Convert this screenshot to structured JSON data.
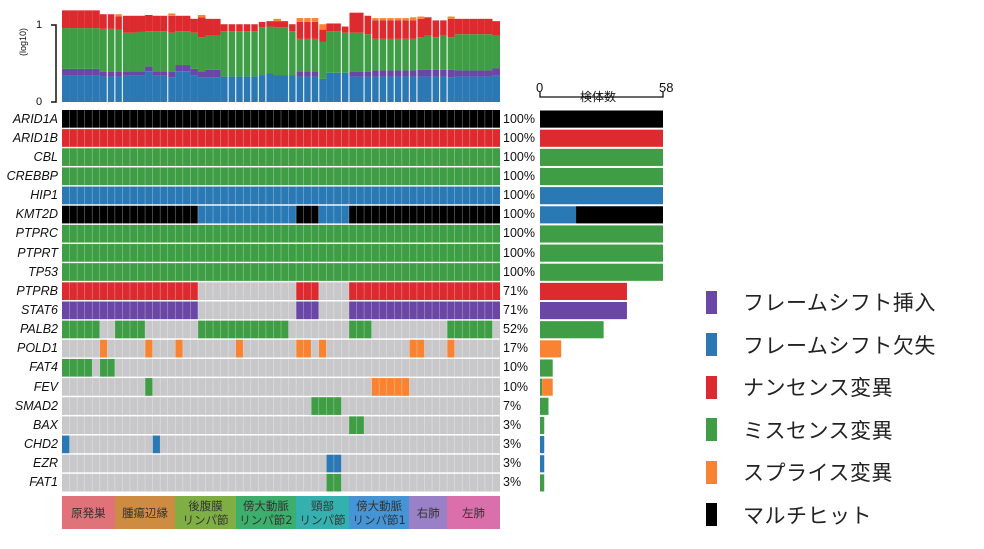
{
  "chart_data": {
    "type": "heatmap",
    "subtype": "oncoprint",
    "n_samples": 58,
    "top_axis": {
      "ylabel": "(log10)",
      "ticks": [
        "0",
        "1"
      ],
      "ylim": [
        0,
        1
      ]
    },
    "count_axis": {
      "title": "検体数",
      "min_label": "0",
      "max_label": "58",
      "max": 58
    },
    "mutation_types": [
      {
        "key": "fs_ins",
        "label": "フレームシフト挿入",
        "color": "#6a46a6"
      },
      {
        "key": "fs_del",
        "label": "フレームシフト欠失",
        "color": "#2a78b4"
      },
      {
        "key": "nonsense",
        "label": "ナンセンス変異",
        "color": "#dc2a2e"
      },
      {
        "key": "missense",
        "label": "ミスセンス変異",
        "color": "#3f9d45"
      },
      {
        "key": "splice",
        "label": "スプライス変異",
        "color": "#f98330"
      },
      {
        "key": "multi",
        "label": "マルチヒット",
        "color": "#000000"
      }
    ],
    "empty_color": "#c8c8ca",
    "regions": [
      {
        "label": "原発巣",
        "start": 0,
        "end": 6,
        "color": "#e0737a"
      },
      {
        "label": "腫瘍辺縁",
        "start": 7,
        "end": 14,
        "color": "#cd8c42"
      },
      {
        "label": "後腹膜\nリンパ節",
        "start": 15,
        "end": 22,
        "color": "#7fae45"
      },
      {
        "label": "傍大動脈\nリンパ節2",
        "start": 23,
        "end": 30,
        "color": "#3daf6c"
      },
      {
        "label": "頸部\nリンパ節",
        "start": 31,
        "end": 37,
        "color": "#34b1ae"
      },
      {
        "label": "傍大動脈\nリンパ節1",
        "start": 38,
        "end": 45,
        "color": "#4594d6"
      },
      {
        "label": "右肺",
        "start": 46,
        "end": 50,
        "color": "#9a80c6"
      },
      {
        "label": "左肺",
        "start": 51,
        "end": 57,
        "color": "#db6fab"
      }
    ],
    "genes": [
      {
        "name": "ARID1A",
        "pct": "100%",
        "segments": [
          {
            "type": "multi",
            "from": 0,
            "to": 57
          }
        ],
        "bar": [
          {
            "type": "multi",
            "count": 58
          }
        ]
      },
      {
        "name": "ARID1B",
        "pct": "100%",
        "segments": [
          {
            "type": "nonsense",
            "from": 0,
            "to": 57
          }
        ],
        "bar": [
          {
            "type": "nonsense",
            "count": 58
          }
        ]
      },
      {
        "name": "CBL",
        "pct": "100%",
        "segments": [
          {
            "type": "missense",
            "from": 0,
            "to": 57
          }
        ],
        "bar": [
          {
            "type": "missense",
            "count": 58
          }
        ]
      },
      {
        "name": "CREBBP",
        "pct": "100%",
        "segments": [
          {
            "type": "missense",
            "from": 0,
            "to": 57
          }
        ],
        "bar": [
          {
            "type": "missense",
            "count": 58
          }
        ]
      },
      {
        "name": "HIP1",
        "pct": "100%",
        "segments": [
          {
            "type": "fs_del",
            "from": 0,
            "to": 57
          }
        ],
        "bar": [
          {
            "type": "fs_del",
            "count": 58
          }
        ]
      },
      {
        "name": "KMT2D",
        "pct": "100%",
        "segments": [
          {
            "type": "multi",
            "from": 0,
            "to": 17
          },
          {
            "type": "fs_del",
            "from": 18,
            "to": 30
          },
          {
            "type": "multi",
            "from": 31,
            "to": 33
          },
          {
            "type": "fs_del",
            "from": 34,
            "to": 37
          },
          {
            "type": "multi",
            "from": 38,
            "to": 57
          }
        ],
        "bar": [
          {
            "type": "fs_del",
            "count": 17
          },
          {
            "type": "multi",
            "count": 41
          }
        ]
      },
      {
        "name": "PTPRC",
        "pct": "100%",
        "segments": [
          {
            "type": "missense",
            "from": 0,
            "to": 57
          }
        ],
        "bar": [
          {
            "type": "missense",
            "count": 58
          }
        ]
      },
      {
        "name": "PTPRT",
        "pct": "100%",
        "segments": [
          {
            "type": "missense",
            "from": 0,
            "to": 57
          }
        ],
        "bar": [
          {
            "type": "missense",
            "count": 58
          }
        ]
      },
      {
        "name": "TP53",
        "pct": "100%",
        "segments": [
          {
            "type": "missense",
            "from": 0,
            "to": 57
          }
        ],
        "bar": [
          {
            "type": "missense",
            "count": 58
          }
        ]
      },
      {
        "name": "PTPRB",
        "pct": "71%",
        "segments": [
          {
            "type": "nonsense",
            "from": 0,
            "to": 17
          },
          {
            "type": "nonsense",
            "from": 31,
            "to": 33
          },
          {
            "type": "nonsense",
            "from": 38,
            "to": 57
          }
        ],
        "bar": [
          {
            "type": "nonsense",
            "count": 41
          }
        ]
      },
      {
        "name": "STAT6",
        "pct": "71%",
        "segments": [
          {
            "type": "fs_ins",
            "from": 0,
            "to": 17
          },
          {
            "type": "fs_ins",
            "from": 31,
            "to": 33
          },
          {
            "type": "fs_ins",
            "from": 38,
            "to": 57
          }
        ],
        "bar": [
          {
            "type": "fs_ins",
            "count": 41
          }
        ]
      },
      {
        "name": "PALB2",
        "pct": "52%",
        "segments": [
          {
            "type": "missense",
            "from": 0,
            "to": 4
          },
          {
            "type": "missense",
            "from": 7,
            "to": 10
          },
          {
            "type": "missense",
            "from": 18,
            "to": 29
          },
          {
            "type": "missense",
            "from": 38,
            "to": 40
          },
          {
            "type": "missense",
            "from": 51,
            "to": 56
          }
        ],
        "bar": [
          {
            "type": "missense",
            "count": 30
          }
        ]
      },
      {
        "name": "POLD1",
        "pct": "17%",
        "segments": [
          {
            "type": "splice",
            "from": 5,
            "to": 5
          },
          {
            "type": "splice",
            "from": 11,
            "to": 11
          },
          {
            "type": "splice",
            "from": 15,
            "to": 15
          },
          {
            "type": "splice",
            "from": 23,
            "to": 23
          },
          {
            "type": "splice",
            "from": 31,
            "to": 32
          },
          {
            "type": "splice",
            "from": 34,
            "to": 34
          },
          {
            "type": "splice",
            "from": 46,
            "to": 47
          },
          {
            "type": "splice",
            "from": 51,
            "to": 51
          }
        ],
        "bar": [
          {
            "type": "splice",
            "count": 10
          }
        ]
      },
      {
        "name": "FAT4",
        "pct": "10%",
        "segments": [
          {
            "type": "missense",
            "from": 0,
            "to": 3
          },
          {
            "type": "missense",
            "from": 5,
            "to": 6
          }
        ],
        "bar": [
          {
            "type": "missense",
            "count": 6
          }
        ]
      },
      {
        "name": "FEV",
        "pct": "10%",
        "segments": [
          {
            "type": "missense",
            "from": 11,
            "to": 11
          },
          {
            "type": "splice",
            "from": 41,
            "to": 45
          }
        ],
        "bar": [
          {
            "type": "missense",
            "count": 1
          },
          {
            "type": "splice",
            "count": 5
          }
        ]
      },
      {
        "name": "SMAD2",
        "pct": "7%",
        "segments": [
          {
            "type": "missense",
            "from": 33,
            "to": 36
          }
        ],
        "bar": [
          {
            "type": "missense",
            "count": 4
          }
        ]
      },
      {
        "name": "BAX",
        "pct": "3%",
        "segments": [
          {
            "type": "missense",
            "from": 38,
            "to": 39
          }
        ],
        "bar": [
          {
            "type": "missense",
            "count": 2
          }
        ]
      },
      {
        "name": "CHD2",
        "pct": "3%",
        "segments": [
          {
            "type": "fs_del",
            "from": 0,
            "to": 0
          },
          {
            "type": "fs_del",
            "from": 12,
            "to": 12
          }
        ],
        "bar": [
          {
            "type": "fs_del",
            "count": 2
          }
        ]
      },
      {
        "name": "EZR",
        "pct": "3%",
        "segments": [
          {
            "type": "fs_del",
            "from": 35,
            "to": 36
          }
        ],
        "bar": [
          {
            "type": "fs_del",
            "count": 2
          }
        ]
      },
      {
        "name": "FAT1",
        "pct": "3%",
        "segments": [
          {
            "type": "missense",
            "from": 35,
            "to": 36
          }
        ],
        "bar": [
          {
            "type": "missense",
            "count": 2
          }
        ]
      }
    ],
    "top_stack": {
      "order": [
        "fs_del",
        "fs_ins",
        "missense",
        "nonsense",
        "splice"
      ],
      "note": "cumulative boundaries per sample, log10 units",
      "samples": [
        [
          0.35,
          0.43,
          0.96,
          1.19,
          1.19
        ],
        [
          0.35,
          0.43,
          0.96,
          1.19,
          1.19
        ],
        [
          0.35,
          0.43,
          0.96,
          1.19,
          1.19
        ],
        [
          0.35,
          0.43,
          0.96,
          1.19,
          1.19
        ],
        [
          0.35,
          0.43,
          0.96,
          1.19,
          1.19
        ],
        [
          0.33,
          0.39,
          0.95,
          1.14,
          1.14
        ],
        [
          0.33,
          0.39,
          0.95,
          1.14,
          1.14
        ],
        [
          0.33,
          0.39,
          0.94,
          1.11,
          1.14
        ],
        [
          0.34,
          0.4,
          0.9,
          1.12,
          1.12
        ],
        [
          0.34,
          0.4,
          0.9,
          1.12,
          1.12
        ],
        [
          0.34,
          0.4,
          0.91,
          1.12,
          1.12
        ],
        [
          0.4,
          0.46,
          0.92,
          1.13,
          1.13
        ],
        [
          0.34,
          0.4,
          0.92,
          1.12,
          1.12
        ],
        [
          0.34,
          0.4,
          0.92,
          1.12,
          1.12
        ],
        [
          0.32,
          0.39,
          0.9,
          1.12,
          1.15
        ],
        [
          0.4,
          0.48,
          0.92,
          1.12,
          1.12
        ],
        [
          0.4,
          0.48,
          0.92,
          1.12,
          1.12
        ],
        [
          0.35,
          0.43,
          0.9,
          1.08,
          1.08
        ],
        [
          0.32,
          0.4,
          0.84,
          1.1,
          1.13
        ],
        [
          0.32,
          0.42,
          0.86,
          1.08,
          1.08
        ],
        [
          0.32,
          0.42,
          0.86,
          1.08,
          1.08
        ],
        [
          0.33,
          0.33,
          0.92,
          1.01,
          1.01
        ],
        [
          0.33,
          0.33,
          0.92,
          1.01,
          1.01
        ],
        [
          0.33,
          0.33,
          0.92,
          1.01,
          1.01
        ],
        [
          0.33,
          0.33,
          0.92,
          1.01,
          1.01
        ],
        [
          0.33,
          0.33,
          0.92,
          1.01,
          1.01
        ],
        [
          0.35,
          0.35,
          0.97,
          1.04,
          1.04
        ],
        [
          0.37,
          0.37,
          0.98,
          1.05,
          1.05
        ],
        [
          0.35,
          0.35,
          0.97,
          1.05,
          1.08
        ],
        [
          0.35,
          0.35,
          0.97,
          1.05,
          1.05
        ],
        [
          0.35,
          0.35,
          0.92,
          1.01,
          1.01
        ],
        [
          0.33,
          0.4,
          0.82,
          1.04,
          1.09
        ],
        [
          0.33,
          0.4,
          0.82,
          1.04,
          1.09
        ],
        [
          0.33,
          0.4,
          0.82,
          1.04,
          1.09
        ],
        [
          0.3,
          0.3,
          0.78,
          0.94,
          1.01
        ],
        [
          0.38,
          0.38,
          0.92,
          1.02,
          1.02
        ],
        [
          0.38,
          0.38,
          0.92,
          1.02,
          1.02
        ],
        [
          0.38,
          0.38,
          0.9,
          0.98,
          0.98
        ],
        [
          0.33,
          0.39,
          0.9,
          1.16,
          1.16
        ],
        [
          0.33,
          0.39,
          0.9,
          1.16,
          1.16
        ],
        [
          0.33,
          0.39,
          0.88,
          1.12,
          1.12
        ],
        [
          0.33,
          0.41,
          0.82,
          1.06,
          1.09
        ],
        [
          0.33,
          0.41,
          0.82,
          1.06,
          1.09
        ],
        [
          0.33,
          0.41,
          0.82,
          1.06,
          1.09
        ],
        [
          0.33,
          0.41,
          0.82,
          1.06,
          1.09
        ],
        [
          0.33,
          0.41,
          0.82,
          1.06,
          1.09
        ],
        [
          0.33,
          0.41,
          0.82,
          1.06,
          1.1
        ],
        [
          0.33,
          0.42,
          0.84,
          1.08,
          1.11
        ],
        [
          0.33,
          0.42,
          0.86,
          1.1,
          1.1
        ],
        [
          0.33,
          0.42,
          0.84,
          1.06,
          1.06
        ],
        [
          0.33,
          0.42,
          0.86,
          1.06,
          1.06
        ],
        [
          0.32,
          0.42,
          0.84,
          1.08,
          1.11
        ],
        [
          0.33,
          0.41,
          0.88,
          1.08,
          1.08
        ],
        [
          0.33,
          0.41,
          0.88,
          1.08,
          1.08
        ],
        [
          0.33,
          0.41,
          0.88,
          1.08,
          1.08
        ],
        [
          0.33,
          0.41,
          0.88,
          1.08,
          1.08
        ],
        [
          0.33,
          0.41,
          0.88,
          1.08,
          1.08
        ],
        [
          0.34,
          0.44,
          0.86,
          1.05,
          1.05
        ]
      ]
    }
  }
}
